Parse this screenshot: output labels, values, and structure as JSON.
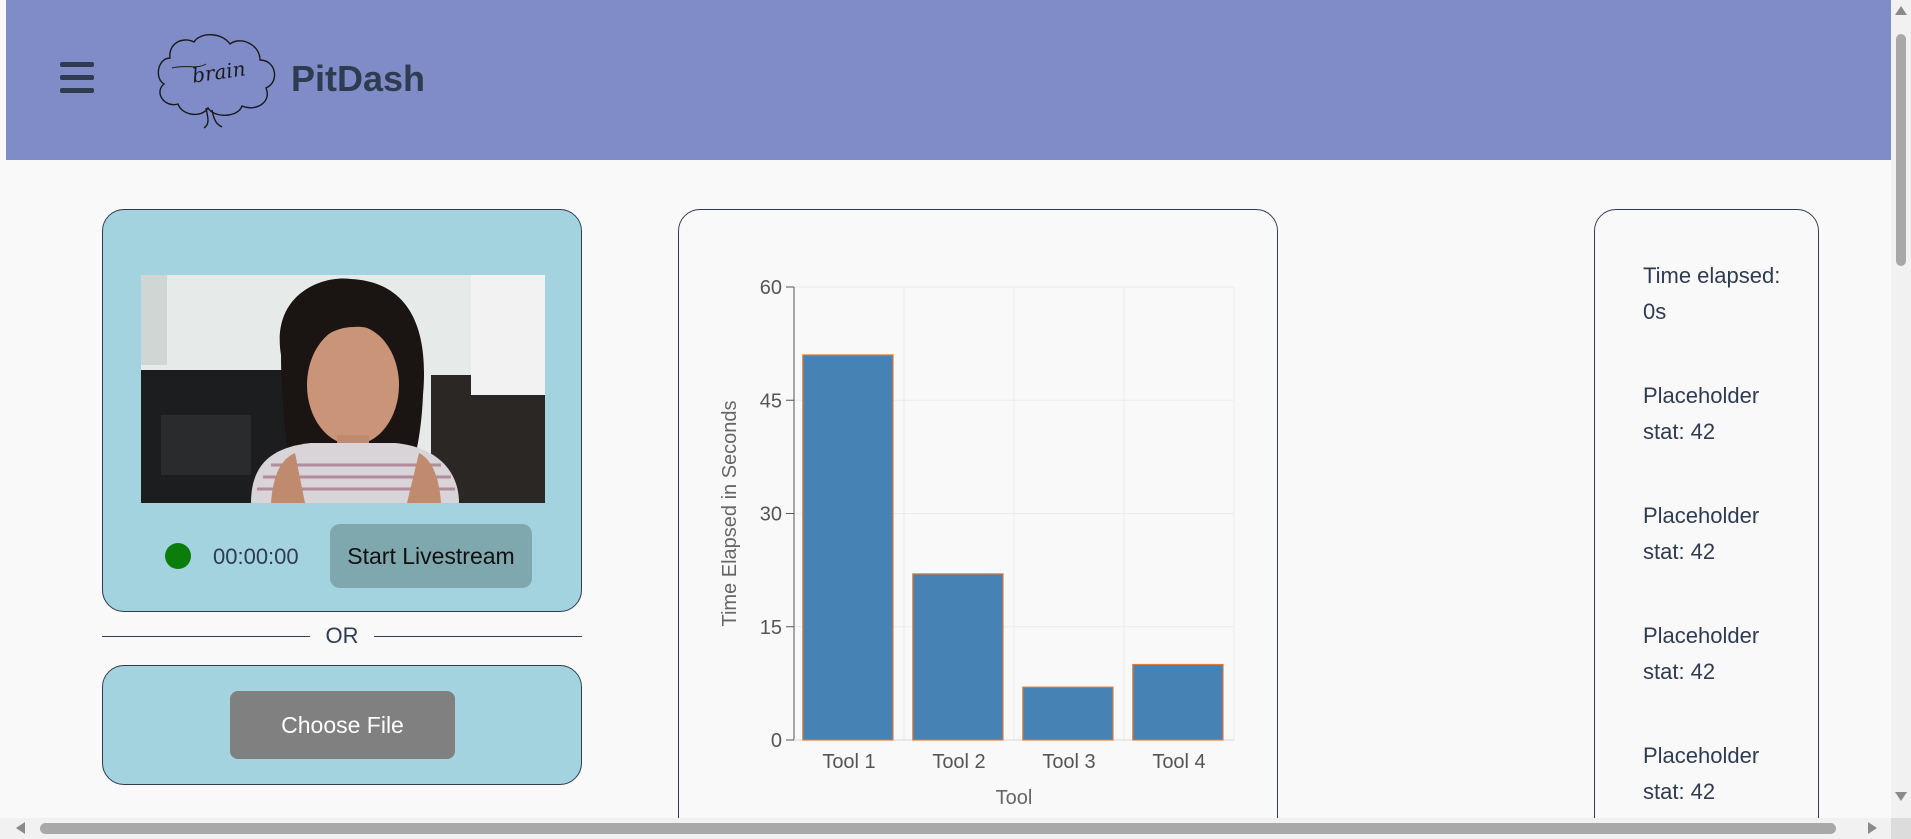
{
  "header": {
    "menu_icon": "hamburger-menu-icon",
    "logo_text": "brain",
    "title": "PitDash"
  },
  "livestream": {
    "status_color": "#0a7d0a",
    "timer": "00:00:00",
    "start_label": "Start Livestream"
  },
  "divider": {
    "label": "OR"
  },
  "upload": {
    "choose_label": "Choose File"
  },
  "chart_data": {
    "type": "bar",
    "categories": [
      "Tool 1",
      "Tool 2",
      "Tool 3",
      "Tool 4"
    ],
    "values": [
      51,
      22,
      7,
      10
    ],
    "xlabel": "Tool",
    "ylabel": "Time Elapsed in Seconds",
    "ylim": [
      0,
      60
    ],
    "yticks": [
      0,
      15,
      30,
      45,
      60
    ],
    "grid": true,
    "bar_color": "#4682b4",
    "bar_edge_color": "#e07b39"
  },
  "stats": [
    {
      "label": "Time elapsed: 0s"
    },
    {
      "label": "Placeholder stat: 42"
    },
    {
      "label": "Placeholder stat: 42"
    },
    {
      "label": "Placeholder stat: 42"
    },
    {
      "label": "Placeholder stat: 42"
    }
  ]
}
